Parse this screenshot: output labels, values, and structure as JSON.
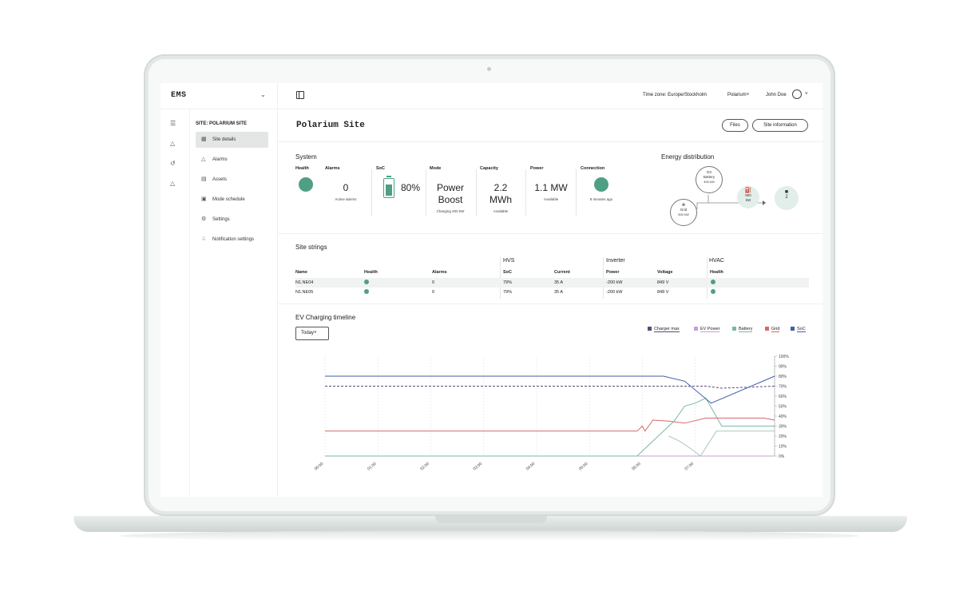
{
  "app": {
    "logo": "EMS"
  },
  "header": {
    "timezone": "Time zone: Europe/Stockholm",
    "org": "Polarium",
    "user": "John Doe"
  },
  "sidebar": {
    "site_label": "SITE: POLARIUM SITE",
    "items": [
      {
        "label": "Site details",
        "icon": "grid-icon",
        "active": true
      },
      {
        "label": "Alarms",
        "icon": "alert-triangle-icon"
      },
      {
        "label": "Assets",
        "icon": "assets-icon"
      },
      {
        "label": "Mode schedule",
        "icon": "calendar-icon"
      },
      {
        "label": "Settings",
        "icon": "gear-icon"
      },
      {
        "label": "Notification settings",
        "icon": "bell-icon"
      }
    ]
  },
  "page": {
    "title": "Polarium Site",
    "files_button": "Files",
    "site_info_button": "Site information"
  },
  "system": {
    "title": "System",
    "health_label": "Health",
    "alarms_label": "Alarms",
    "alarms_value": "0",
    "alarms_sub": "Active alarms",
    "soc_label": "SoC",
    "soc_value": "80%",
    "soc_level": 0.8,
    "mode_label": "Mode",
    "mode_value_1": "Power",
    "mode_value_2": "Boost",
    "mode_sub": "Charging 400 kW",
    "capacity_label": "Capacity",
    "capacity_value_1": "2.2",
    "capacity_value_2": "MWh",
    "capacity_sub": "Available",
    "power_label": "Power",
    "power_value": "1.1 MW",
    "power_sub": "Available",
    "connection_label": "Connection",
    "connection_sub": "8 minutes ago"
  },
  "energy": {
    "title": "Energy distribution",
    "battery_name": "D3",
    "battery_label": "Battery",
    "battery_value": "400 kW",
    "grid_label": "Grid",
    "grid_value": "500 kW",
    "charger_value": "900",
    "charger_unit": "kW",
    "ev_count": "2"
  },
  "strings": {
    "title": "Site strings",
    "groups": {
      "hvs": "HVS",
      "inverter": "Inverter",
      "hvac": "HVAC"
    },
    "headers": [
      "Name",
      "Health",
      "Alarms",
      "SoC",
      "Current",
      "Power",
      "Voltage",
      "Health"
    ],
    "rows": [
      {
        "name": "N1.NE04",
        "alarms": "0",
        "soc": "79%",
        "current": "35 A",
        "power": "-200 kW",
        "voltage": "849 V"
      },
      {
        "name": "N1.NE05",
        "alarms": "0",
        "soc": "79%",
        "current": "35 A",
        "power": "-200 kW",
        "voltage": "848 V"
      }
    ]
  },
  "ev": {
    "title": "EV Charging timeline",
    "range": "Today"
  },
  "colors": {
    "accent": "#4f9f84",
    "charger_max": "#5a4a7a",
    "ev_power": "#c4a0d8",
    "battery": "#7ab8a4",
    "grid": "#d56a6a",
    "soc": "#3f5fa8"
  },
  "chart_data": {
    "type": "line",
    "categories": [
      "00:00",
      "01:00",
      "02:00",
      "03:00",
      "04:00",
      "05:00",
      "06:00",
      "07:00"
    ],
    "right_ticks": [
      "100%",
      "90%",
      "80%",
      "70%",
      "60%",
      "50%",
      "40%",
      "30%",
      "20%",
      "10%",
      "0%"
    ],
    "ylim": [
      0,
      100
    ],
    "xlim": [
      0,
      8.5
    ],
    "legend_position": "top-right",
    "series": [
      {
        "name": "Charger max",
        "color": "#5a4a7a",
        "dashed": true,
        "x": [
          0,
          7.2,
          7.5,
          8.5
        ],
        "y": [
          70,
          70,
          68,
          70
        ]
      },
      {
        "name": "EV Power",
        "color": "#c4a0d8",
        "x": [
          0,
          8.5
        ],
        "y": [
          0,
          0
        ]
      },
      {
        "name": "Battery",
        "color": "#7ab8a4",
        "x": [
          0,
          5.9,
          6.3,
          6.6,
          6.8,
          7.0,
          7.2,
          7.5,
          8.5
        ],
        "y": [
          0,
          0,
          20,
          35,
          50,
          53,
          58,
          30,
          30
        ]
      },
      {
        "name": "Grid",
        "color": "#d56a6a",
        "x": [
          0,
          5.9,
          6.0,
          6.05,
          6.2,
          6.5,
          6.8,
          7.2,
          8.3,
          8.5
        ],
        "y": [
          25,
          25,
          30,
          25,
          36,
          35,
          33,
          38,
          38,
          36
        ]
      },
      {
        "name": "SoC",
        "color": "#3f5fa8",
        "x": [
          0,
          5.8,
          6.4,
          6.8,
          7.3,
          8.5
        ],
        "y": [
          80,
          80,
          80,
          75,
          53,
          80
        ]
      },
      {
        "name": "",
        "color": "#a8c8ba",
        "x": [
          6.5,
          6.7,
          6.9,
          7.1,
          7.4,
          8.5
        ],
        "y": [
          20,
          15,
          8,
          0,
          25,
          25
        ]
      }
    ]
  }
}
